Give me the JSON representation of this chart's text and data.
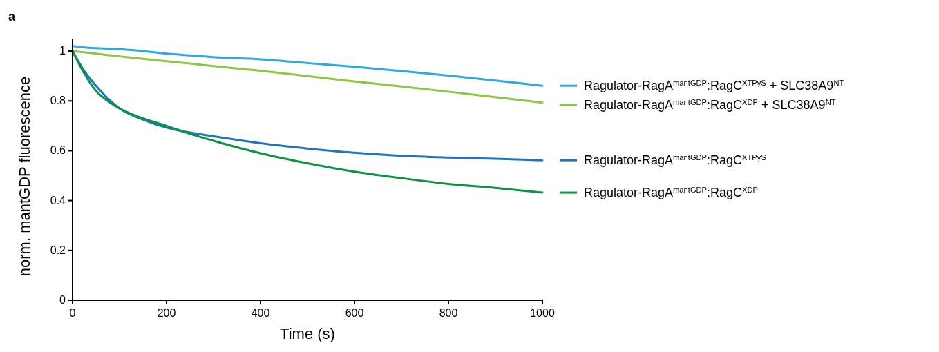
{
  "chart_data": {
    "type": "line",
    "title": "a",
    "xlabel": "Time (s)",
    "ylabel": "norm. mantGDP fluorescence",
    "xlim": [
      0,
      1000
    ],
    "ylim": [
      0,
      1.05
    ],
    "xticks": [
      0,
      200,
      400,
      600,
      800,
      1000
    ],
    "yticks": [
      0,
      0.2,
      0.4,
      0.6,
      0.8,
      1
    ],
    "grid": false,
    "legend": "right",
    "marker": "none",
    "line_style": "solid",
    "x": [
      0,
      25,
      50,
      75,
      100,
      150,
      200,
      250,
      300,
      400,
      500,
      600,
      700,
      800,
      900,
      1000
    ],
    "series": [
      {
        "name": "Ragulator-RagA$^{mantGDP}$:RagC$^{XTPγS}$ + SLC38A9$^{NT}$",
        "color": "#29abe2",
        "values": [
          1.02,
          1.015,
          1.012,
          1.01,
          1.008,
          1.0,
          0.99,
          0.983,
          0.976,
          0.967,
          0.952,
          0.937,
          0.92,
          0.902,
          0.882,
          0.861
        ]
      },
      {
        "name": "Ragulator-RagA$^{mantGDP}$:RagC$^{XDP}$ + SLC38A9$^{NT}$",
        "color": "#8dc63f",
        "values": [
          1.0,
          0.995,
          0.99,
          0.984,
          0.979,
          0.969,
          0.959,
          0.95,
          0.94,
          0.921,
          0.9,
          0.878,
          0.858,
          0.837,
          0.815,
          0.793
        ]
      },
      {
        "name": "Ragulator-RagA$^{mantGDP}$:RagC$^{XTPγS}$",
        "color": "#1f74c2",
        "values": [
          1.0,
          0.92,
          0.86,
          0.81,
          0.77,
          0.725,
          0.693,
          0.673,
          0.658,
          0.63,
          0.609,
          0.592,
          0.58,
          0.573,
          0.568,
          0.562
        ]
      },
      {
        "name": "Ragulator-RagA$^{mantGDP}$:RagC$^{XDP}$",
        "color": "#0b9444",
        "values": [
          1.0,
          0.91,
          0.84,
          0.8,
          0.77,
          0.73,
          0.7,
          0.668,
          0.64,
          0.59,
          0.55,
          0.516,
          0.49,
          0.467,
          0.451,
          0.432
        ]
      }
    ]
  }
}
